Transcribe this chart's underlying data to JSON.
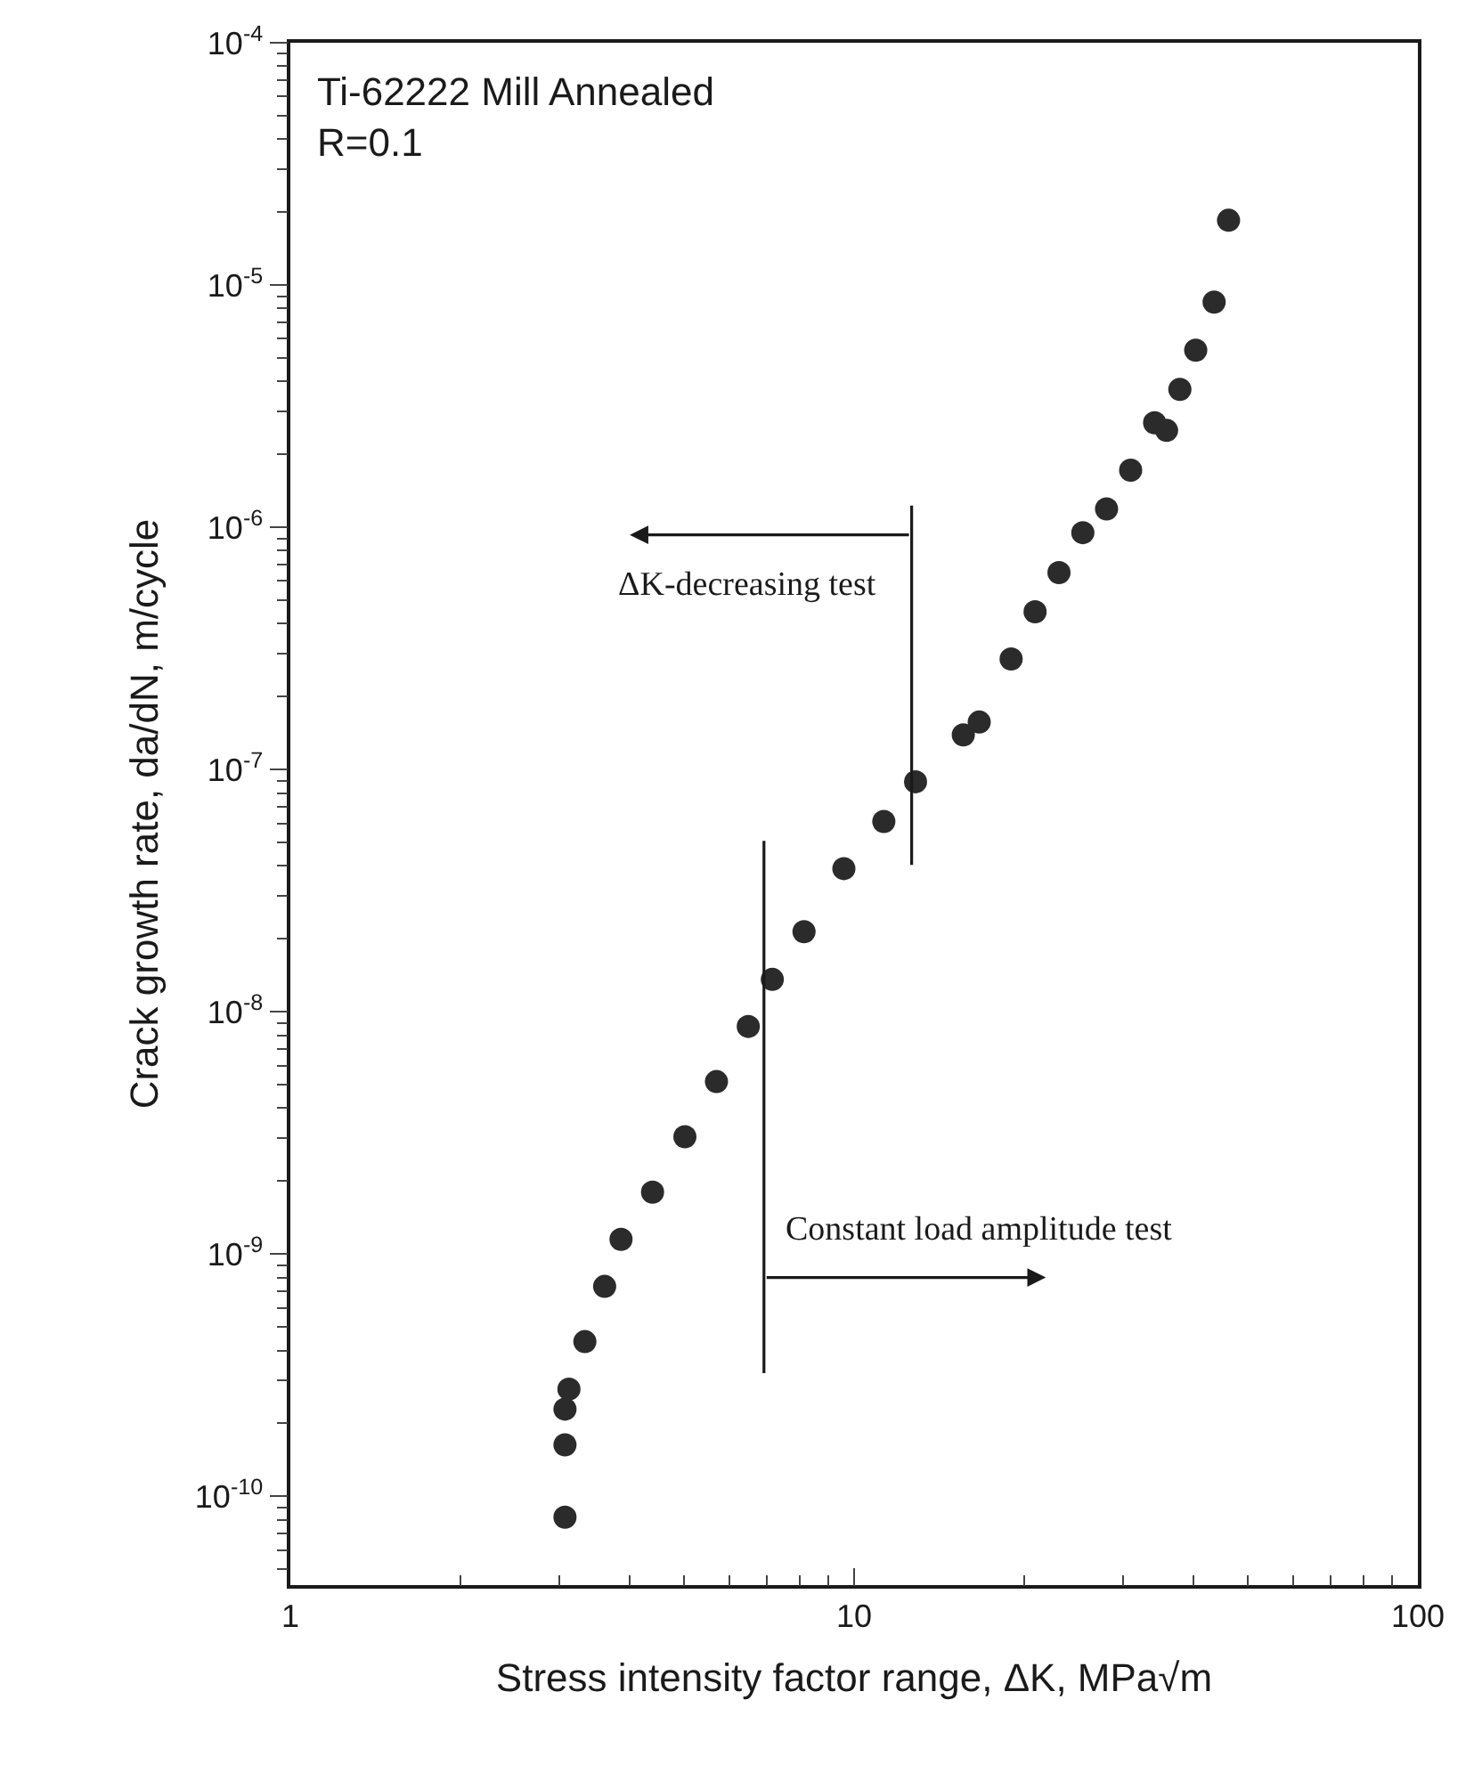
{
  "chart_data": {
    "type": "scatter",
    "title": "Ti-62222 Mill Annealed",
    "subtitle": "R=0.1",
    "xlabel": "Stress intensity factor range, ΔK, MPa√m",
    "ylabel": "Crack growth rate, da/dN, m/cycle",
    "log": "xy",
    "grid": false,
    "xlim": [
      1,
      100
    ],
    "xticks": [
      1,
      10,
      100
    ],
    "ylim": [
      4.3e-11,
      0.0001
    ],
    "yticks": [
      {
        "value": 1e-10,
        "label": "10$^{-10}$"
      },
      {
        "value": 1e-09,
        "label": "10$^{-9}$"
      },
      {
        "value": 1e-08,
        "label": "10$^{-8}$"
      },
      {
        "value": 1e-07,
        "label": "10$^{-7}$"
      },
      {
        "value": 1e-06,
        "label": "10$^{-6}$"
      },
      {
        "value": 1e-05,
        "label": "10$^{-5}$"
      },
      {
        "value": 0.0001,
        "label": "10$^{-4}$"
      }
    ],
    "series": [
      {
        "marker": "circle",
        "color": "#2b2b2b",
        "x": [
          3.07,
          3.07,
          3.07,
          3.12,
          3.33,
          3.61,
          3.86,
          4.39,
          5.01,
          5.7,
          6.49,
          7.16,
          8.15,
          9.59,
          11.29,
          12.85,
          15.62,
          16.67,
          18.99,
          20.94,
          23.09,
          25.45,
          28.04,
          30.94,
          34.12,
          35.83,
          37.83,
          40.36,
          43.51,
          46.15
        ],
        "values": [
          8.2e-11,
          1.63e-10,
          2.29e-10,
          2.77e-10,
          4.35e-10,
          7.35e-10,
          1.15e-09,
          1.8e-09,
          3.05e-09,
          5.15e-09,
          8.7e-09,
          1.36e-08,
          2.14e-08,
          3.9e-08,
          6.1e-08,
          8.9e-08,
          1.39e-07,
          1.57e-07,
          2.86e-07,
          4.48e-07,
          6.5e-07,
          9.5e-07,
          1.19e-06,
          1.72e-06,
          2.7e-06,
          2.51e-06,
          3.71e-06,
          5.38e-06,
          8.5e-06,
          1.85e-05
        ]
      },
      {
        "type": "line",
        "color": "#1a1a1a",
        "line_style": "solid",
        "x": [
          12.65,
          12.65
        ],
        "values": [
          1.23e-06,
          4.04e-08
        ]
      },
      {
        "type": "line",
        "color": "#1a1a1a",
        "line_style": "solid",
        "x": [
          6.92,
          6.92
        ],
        "values": [
          5.08e-08,
          3.22e-10
        ]
      }
    ],
    "annotations": [
      {
        "text": "ΔK-decreasing test",
        "x": 12.65,
        "y": 9.3e-07
      },
      {
        "text": "Constant load amplitude test",
        "x": 6.92,
        "y": 8e-10
      }
    ]
  }
}
